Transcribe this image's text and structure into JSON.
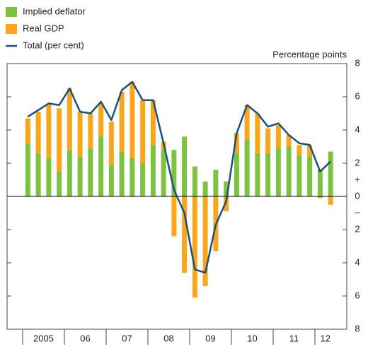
{
  "chart_data": {
    "type": "bar-line",
    "y_axis_label": "Percentage points",
    "sign_marks": [
      "+",
      "–"
    ],
    "year_labels": [
      "2005",
      "06",
      "07",
      "08",
      "09",
      "10",
      "11",
      "12"
    ],
    "categories": [
      null,
      null,
      null,
      null,
      null,
      null,
      null,
      null,
      null,
      null,
      null,
      null,
      null,
      null,
      null,
      null,
      null,
      null,
      null,
      null,
      null,
      null,
      null,
      null,
      null,
      null,
      null,
      null,
      null,
      null
    ],
    "series": [
      {
        "name": "Implied deflator",
        "color": "#7dc242",
        "kind": "bar",
        "values": [
          3.2,
          2.6,
          2.3,
          1.5,
          2.8,
          2.4,
          2.9,
          3.6,
          1.9,
          2.7,
          2.3,
          2.0,
          3.1,
          2.8,
          2.8,
          3.6,
          1.8,
          0.9,
          1.6,
          0.9,
          2.6,
          3.4,
          2.6,
          2.6,
          2.9,
          3.0,
          2.5,
          2.4,
          1.6,
          2.7
        ]
      },
      {
        "name": "Real GDP",
        "color": "#f9a61a",
        "kind": "bar",
        "values": [
          1.5,
          2.5,
          3.3,
          3.8,
          3.7,
          2.7,
          2.1,
          2.0,
          2.6,
          3.6,
          4.6,
          3.8,
          2.7,
          0.5,
          -2.4,
          -4.6,
          -6.1,
          -5.4,
          -3.3,
          -0.9,
          1.2,
          2.1,
          2.4,
          1.5,
          1.4,
          0.7,
          0.6,
          0.7,
          -0.1,
          -0.5
        ]
      },
      {
        "name": "Total (per cent)",
        "color": "#1a4f82",
        "kind": "line",
        "values": [
          4.8,
          5.2,
          5.6,
          5.5,
          6.5,
          5.1,
          5.0,
          5.7,
          4.6,
          6.4,
          6.9,
          5.8,
          5.8,
          3.2,
          0.4,
          -1.0,
          -4.4,
          -4.6,
          -1.7,
          -0.3,
          3.8,
          5.5,
          5.0,
          4.2,
          4.4,
          3.7,
          3.2,
          3.1,
          1.5,
          2.1
        ]
      }
    ],
    "ylim": [
      -8,
      8
    ],
    "yticks": [
      {
        "value": -8,
        "label": "8"
      },
      {
        "value": -6,
        "label": "6"
      },
      {
        "value": -4,
        "label": "4"
      },
      {
        "value": -2,
        "label": "2"
      },
      0,
      2,
      4,
      6,
      8
    ]
  }
}
